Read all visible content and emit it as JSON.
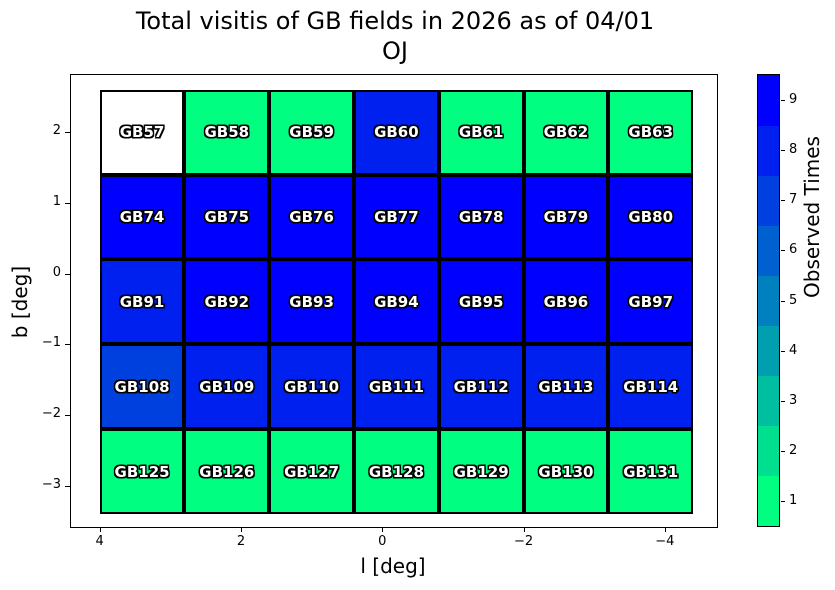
{
  "figure": {
    "title_line1": "Total visitis of GB fields in 2026 as of 04/01",
    "title_line2": "OJ"
  },
  "axes": {
    "xlabel": "l [deg]",
    "ylabel": "b [deg]"
  },
  "colorbar": {
    "label": "Observed Times"
  },
  "chart_data": {
    "type": "heatmap",
    "title": "Total visitis of GB fields in 2026 as of 04/01 / OJ",
    "xlabel": "l [deg]",
    "ylabel": "b [deg]",
    "colorbar_label": "Observed Times",
    "x_axis_inverted": true,
    "x_ticks": [
      4,
      2,
      0,
      -2,
      -4
    ],
    "y_ticks": [
      2,
      1,
      0,
      -1,
      -2,
      -3
    ],
    "colorbar_ticks": [
      1,
      2,
      3,
      4,
      5,
      6,
      7,
      8,
      9
    ],
    "value_range": [
      1,
      9
    ],
    "cell_size_deg": 1.2,
    "columns_l_centers": [
      3.4,
      2.2,
      1.0,
      -0.2,
      -1.4,
      -2.6,
      -3.8
    ],
    "value_colors": {
      "0": "#FFFFFF",
      "1": "#00FF80",
      "2": "#00DF90",
      "3": "#00BFA0",
      "4": "#009FB0",
      "5": "#0080BF",
      "6": "#0060CF",
      "7": "#0040DF",
      "8": "#0020EF",
      "9": "#0000FF"
    },
    "rows": [
      {
        "b_center": 2.0,
        "cells": [
          {
            "label": "GB57",
            "value": 0
          },
          {
            "label": "GB58",
            "value": 1
          },
          {
            "label": "GB59",
            "value": 1
          },
          {
            "label": "GB60",
            "value": 8
          },
          {
            "label": "GB61",
            "value": 1
          },
          {
            "label": "GB62",
            "value": 1
          },
          {
            "label": "GB63",
            "value": 1
          }
        ]
      },
      {
        "b_center": 0.8,
        "cells": [
          {
            "label": "GB74",
            "value": 9
          },
          {
            "label": "GB75",
            "value": 9
          },
          {
            "label": "GB76",
            "value": 9
          },
          {
            "label": "GB77",
            "value": 9
          },
          {
            "label": "GB78",
            "value": 9
          },
          {
            "label": "GB79",
            "value": 9
          },
          {
            "label": "GB80",
            "value": 9
          }
        ]
      },
      {
        "b_center": -0.4,
        "cells": [
          {
            "label": "GB91",
            "value": 8
          },
          {
            "label": "GB92",
            "value": 9
          },
          {
            "label": "GB93",
            "value": 9
          },
          {
            "label": "GB94",
            "value": 9
          },
          {
            "label": "GB95",
            "value": 9
          },
          {
            "label": "GB96",
            "value": 9
          },
          {
            "label": "GB97",
            "value": 9
          }
        ]
      },
      {
        "b_center": -1.6,
        "cells": [
          {
            "label": "GB108",
            "value": 7
          },
          {
            "label": "GB109",
            "value": 8
          },
          {
            "label": "GB110",
            "value": 8
          },
          {
            "label": "GB111",
            "value": 8
          },
          {
            "label": "GB112",
            "value": 8
          },
          {
            "label": "GB113",
            "value": 8
          },
          {
            "label": "GB114",
            "value": 8
          }
        ]
      },
      {
        "b_center": -2.8,
        "cells": [
          {
            "label": "GB125",
            "value": 1
          },
          {
            "label": "GB126",
            "value": 1
          },
          {
            "label": "GB127",
            "value": 1
          },
          {
            "label": "GB128",
            "value": 1
          },
          {
            "label": "GB129",
            "value": 1
          },
          {
            "label": "GB130",
            "value": 1
          },
          {
            "label": "GB131",
            "value": 1
          }
        ]
      }
    ]
  }
}
